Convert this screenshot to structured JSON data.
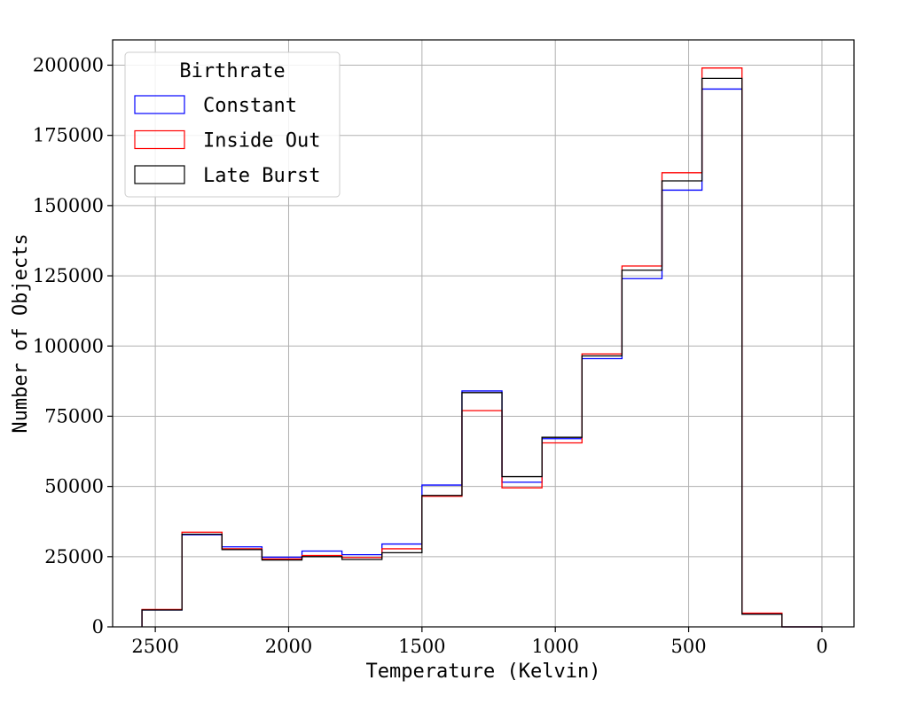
{
  "chart_data": {
    "type": "step-histogram",
    "xlabel": "Temperature (Kelvin)",
    "ylabel": "Number of Objects",
    "xlim": [
      2660,
      -120
    ],
    "ylim": [
      0,
      209000
    ],
    "x_inverted": true,
    "grid": true,
    "x_ticks": [
      2500,
      2000,
      1500,
      1000,
      500,
      0
    ],
    "y_ticks": [
      0,
      25000,
      50000,
      75000,
      100000,
      125000,
      150000,
      175000,
      200000
    ],
    "bin_edges": [
      2550,
      2400,
      2250,
      2100,
      1950,
      1800,
      1650,
      1500,
      1350,
      1200,
      1050,
      900,
      750,
      600,
      450,
      300,
      150,
      0
    ],
    "legend": {
      "title": "Birthrate",
      "placement": "top-left"
    },
    "series": [
      {
        "name": "Constant",
        "color": "#0000ff",
        "values": [
          6000,
          32800,
          28500,
          24800,
          27000,
          25700,
          29500,
          50500,
          84000,
          51500,
          67000,
          95500,
          124000,
          155500,
          191500,
          4700,
          0
        ]
      },
      {
        "name": "Inside Out",
        "color": "#ff0000",
        "values": [
          6200,
          33700,
          27800,
          24200,
          25400,
          24700,
          27800,
          46500,
          77000,
          49500,
          65500,
          97200,
          128500,
          161700,
          199000,
          4900,
          0
        ]
      },
      {
        "name": "Late Burst",
        "color": "#000000",
        "values": [
          6000,
          33000,
          27500,
          23800,
          25000,
          24000,
          26400,
          46800,
          83400,
          53500,
          67500,
          96500,
          127000,
          158800,
          195300,
          4500,
          0
        ]
      }
    ]
  }
}
